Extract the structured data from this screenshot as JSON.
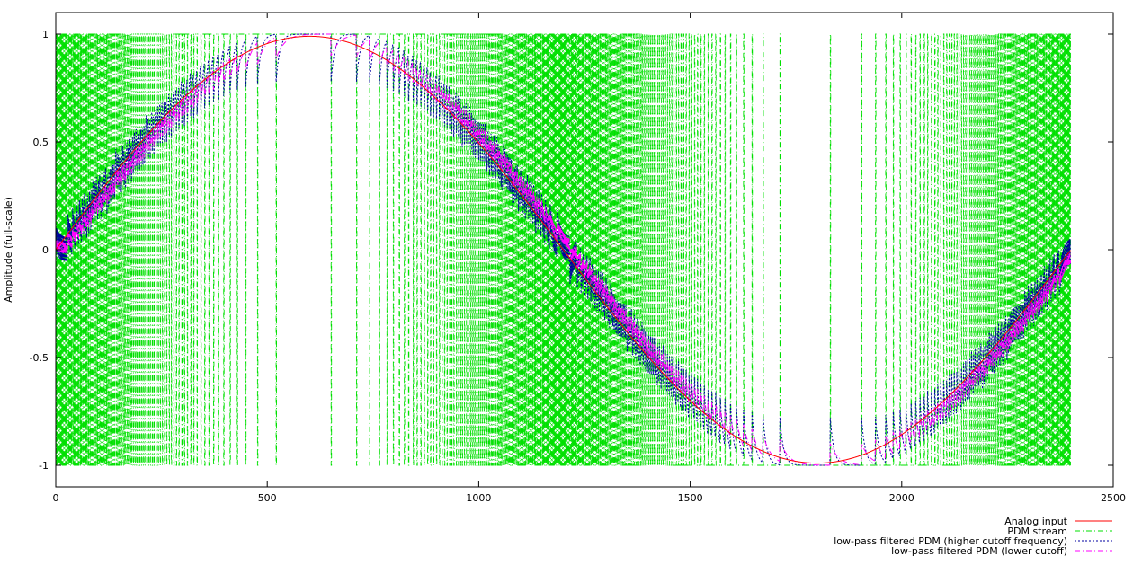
{
  "chart_data": {
    "type": "line",
    "title": "",
    "xlabel": "",
    "ylabel": "Amplitude (full-scale)",
    "xlim": [
      0,
      2500
    ],
    "ylim": [
      -1.1,
      1.1
    ],
    "xticks": [
      0,
      500,
      1000,
      1500,
      2000,
      2500
    ],
    "xtick_labels": [
      "0",
      "500",
      "1000",
      "1500",
      "2000",
      "2500"
    ],
    "yticks": [
      1,
      0.5,
      0,
      -0.5,
      -1
    ],
    "ytick_labels": [
      "1",
      "0.5",
      "0",
      "-0.5",
      "-1"
    ],
    "grid": false,
    "legend_position": "bottom-right",
    "sample_count": 2400,
    "sine_amplitude": 0.99,
    "sine_period_samples": 2400,
    "series": [
      {
        "name": "Analog input",
        "color": "#ff0000",
        "style": "solid",
        "x": [
          0,
          200,
          400,
          600,
          800,
          1000,
          1200,
          1400,
          1600,
          1800,
          2000,
          2200,
          2400
        ],
        "y": [
          0.0,
          0.5,
          0.86,
          0.99,
          0.86,
          0.5,
          0.0,
          -0.5,
          -0.86,
          -0.99,
          -0.86,
          -0.5,
          0.0
        ]
      },
      {
        "name": "PDM stream",
        "color": "#00e000",
        "style": "dash-dot",
        "values": [
          -1,
          1
        ]
      },
      {
        "name": "low-pass filtered PDM (higher cutoff frequency)",
        "color": "#0000a0",
        "style": "dotted",
        "x": [
          0,
          200,
          400,
          600,
          800,
          1000,
          1200,
          1400,
          1600,
          1800,
          2000,
          2200,
          2400
        ],
        "y": [
          0.03,
          0.45,
          0.82,
          0.99,
          0.88,
          0.56,
          0.06,
          -0.44,
          -0.82,
          -0.98,
          -0.87,
          -0.55,
          -0.05
        ]
      },
      {
        "name": "low-pass filtered PDM (lower cutoff)",
        "color": "#ff00ff",
        "style": "dash-dot",
        "x": [
          0,
          200,
          400,
          600,
          800,
          1000,
          1200,
          1400,
          1600,
          1800,
          2000,
          2200,
          2400
        ],
        "y": [
          -0.02,
          0.41,
          0.79,
          0.98,
          0.9,
          0.6,
          0.1,
          -0.4,
          -0.79,
          -0.97,
          -0.89,
          -0.58,
          -0.08
        ]
      }
    ]
  }
}
